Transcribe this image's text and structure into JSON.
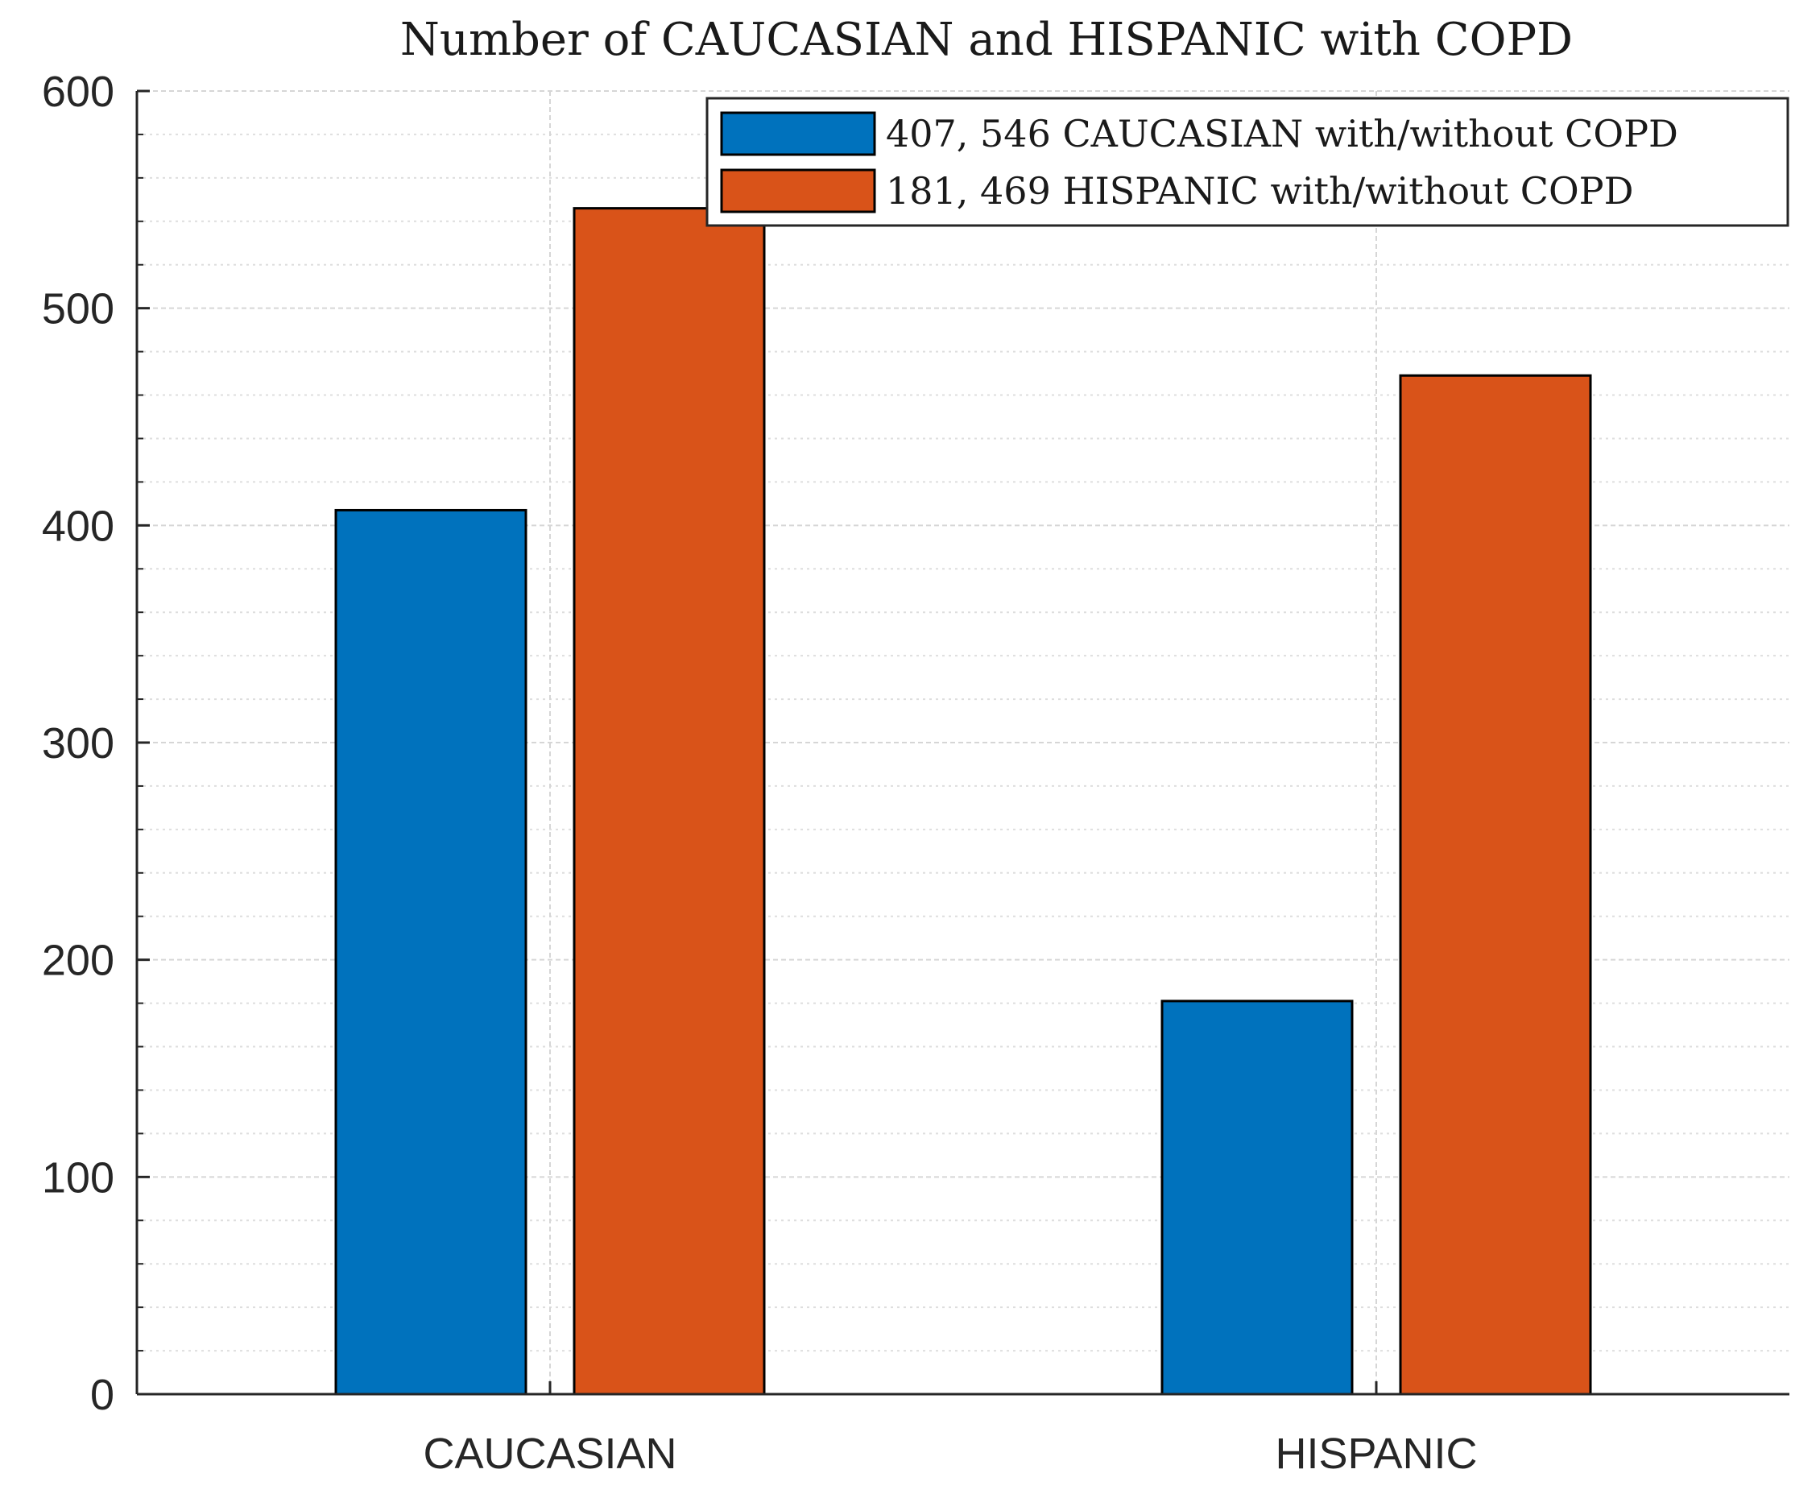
{
  "chart_data": {
    "type": "bar",
    "title": "Number of CAUCASIAN and HISPANIC with COPD",
    "categories": [
      "CAUCASIAN",
      "HISPANIC"
    ],
    "series": [
      {
        "name": "407, 546 CAUCASIAN with/without COPD",
        "values": [
          407,
          181
        ],
        "color": "#0072BD"
      },
      {
        "name": "181, 469 HISPANIC with/without COPD",
        "values": [
          546,
          469
        ],
        "color": "#D95319"
      }
    ],
    "xlabel": "",
    "ylabel": "",
    "ylim": [
      0,
      600
    ],
    "yticks": [
      0,
      100,
      200,
      300,
      400,
      500,
      600
    ],
    "ytick_labels": [
      "0",
      "100",
      "200",
      "300",
      "400",
      "500",
      "600"
    ],
    "minor_tick_step": 20,
    "grid": true,
    "minor_grid": true,
    "legend_location": "top-right"
  }
}
